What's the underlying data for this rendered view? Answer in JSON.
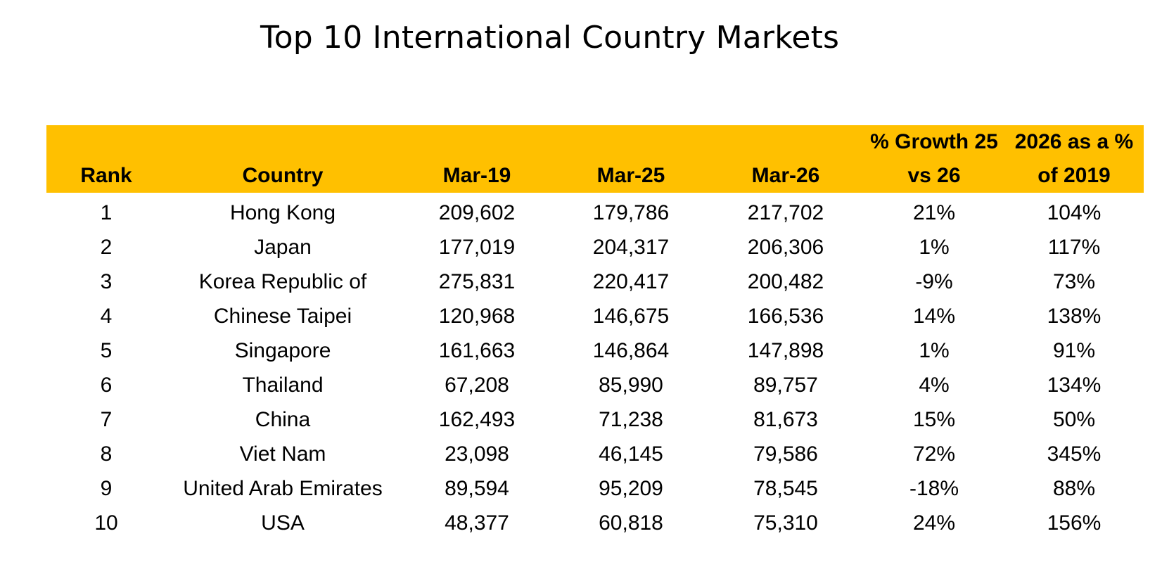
{
  "title": "Top 10 International Country Markets",
  "chart_data": {
    "type": "table",
    "title": "Top 10 International Country Markets",
    "header_color": "#FFC000",
    "columns": [
      {
        "line1": "",
        "line2": "Rank"
      },
      {
        "line1": "",
        "line2": "Country"
      },
      {
        "line1": "",
        "line2": "Mar-19"
      },
      {
        "line1": "",
        "line2": "Mar-25"
      },
      {
        "line1": "",
        "line2": "Mar-26"
      },
      {
        "line1": "% Growth 25",
        "line2": "vs 26"
      },
      {
        "line1": "2026 as a %",
        "line2": "of 2019"
      }
    ],
    "rows": [
      [
        "1",
        "Hong Kong",
        "209,602",
        "179,786",
        "217,702",
        "21%",
        "104%"
      ],
      [
        "2",
        "Japan",
        "177,019",
        "204,317",
        "206,306",
        "1%",
        "117%"
      ],
      [
        "3",
        "Korea Republic of",
        "275,831",
        "220,417",
        "200,482",
        "-9%",
        "73%"
      ],
      [
        "4",
        "Chinese Taipei",
        "120,968",
        "146,675",
        "166,536",
        "14%",
        "138%"
      ],
      [
        "5",
        "Singapore",
        "161,663",
        "146,864",
        "147,898",
        "1%",
        "91%"
      ],
      [
        "6",
        "Thailand",
        "67,208",
        "85,990",
        "89,757",
        "4%",
        "134%"
      ],
      [
        "7",
        "China",
        "162,493",
        "71,238",
        "81,673",
        "15%",
        "50%"
      ],
      [
        "8",
        "Viet Nam",
        "23,098",
        "46,145",
        "79,586",
        "72%",
        "345%"
      ],
      [
        "9",
        "United Arab Emirates",
        "89,594",
        "95,209",
        "78,545",
        "-18%",
        "88%"
      ],
      [
        "10",
        "USA",
        "48,377",
        "60,818",
        "75,310",
        "24%",
        "156%"
      ]
    ]
  }
}
